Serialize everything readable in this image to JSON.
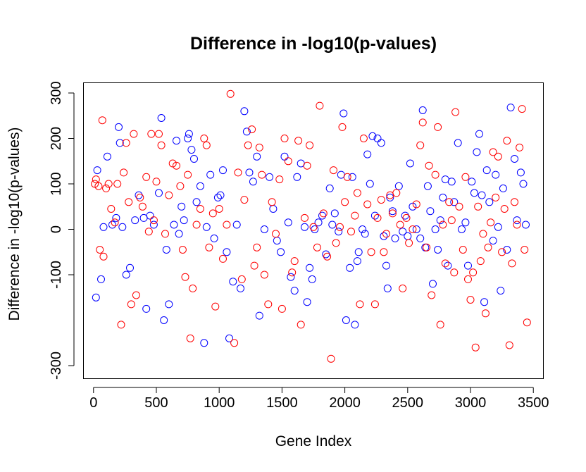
{
  "chart_data": {
    "type": "scatter",
    "title": "Difference in -log10(p-values)",
    "xlabel": "Gene Index",
    "ylabel": "Difference in -log10(p-values)",
    "xlim": [
      -80,
      3580
    ],
    "ylim": [
      -300,
      300
    ],
    "xticks": [
      0,
      500,
      1000,
      1500,
      2000,
      2500,
      3000,
      3500
    ],
    "yticks": [
      -300,
      -100,
      0,
      100,
      200,
      300
    ],
    "grid": false,
    "legend": "none",
    "colors": {
      "series_1": "#0000ff",
      "series_2": "#ff0000"
    },
    "series": [
      {
        "color": "#0000ff",
        "points": [
          [
            20,
            -150
          ],
          [
            30,
            130
          ],
          [
            60,
            -110
          ],
          [
            80,
            5
          ],
          [
            110,
            160
          ],
          [
            150,
            10
          ],
          [
            180,
            25
          ],
          [
            200,
            225
          ],
          [
            210,
            190
          ],
          [
            230,
            5
          ],
          [
            260,
            -100
          ],
          [
            290,
            -85
          ],
          [
            330,
            20
          ],
          [
            360,
            75
          ],
          [
            400,
            25
          ],
          [
            420,
            -175
          ],
          [
            450,
            30
          ],
          [
            480,
            10
          ],
          [
            520,
            80
          ],
          [
            540,
            245
          ],
          [
            560,
            -200
          ],
          [
            580,
            -45
          ],
          [
            600,
            -165
          ],
          [
            640,
            10
          ],
          [
            660,
            195
          ],
          [
            680,
            -10
          ],
          [
            700,
            50
          ],
          [
            720,
            20
          ],
          [
            750,
            200
          ],
          [
            760,
            210
          ],
          [
            780,
            175
          ],
          [
            800,
            155
          ],
          [
            820,
            60
          ],
          [
            850,
            95
          ],
          [
            880,
            -250
          ],
          [
            900,
            5
          ],
          [
            930,
            120
          ],
          [
            960,
            -20
          ],
          [
            990,
            70
          ],
          [
            1010,
            75
          ],
          [
            1030,
            130
          ],
          [
            1060,
            -50
          ],
          [
            1080,
            -240
          ],
          [
            1110,
            -115
          ],
          [
            1140,
            10
          ],
          [
            1170,
            -130
          ],
          [
            1200,
            260
          ],
          [
            1220,
            215
          ],
          [
            1240,
            125
          ],
          [
            1270,
            105
          ],
          [
            1300,
            160
          ],
          [
            1320,
            -190
          ],
          [
            1360,
            0
          ],
          [
            1400,
            115
          ],
          [
            1430,
            45
          ],
          [
            1460,
            -25
          ],
          [
            1490,
            -50
          ],
          [
            1520,
            160
          ],
          [
            1550,
            15
          ],
          [
            1570,
            -105
          ],
          [
            1600,
            -135
          ],
          [
            1620,
            115
          ],
          [
            1650,
            145
          ],
          [
            1680,
            5
          ],
          [
            1700,
            -160
          ],
          [
            1720,
            -85
          ],
          [
            1740,
            -110
          ],
          [
            1760,
            0
          ],
          [
            1790,
            15
          ],
          [
            1820,
            30
          ],
          [
            1850,
            -55
          ],
          [
            1880,
            90
          ],
          [
            1900,
            10
          ],
          [
            1920,
            35
          ],
          [
            1950,
            -5
          ],
          [
            1970,
            120
          ],
          [
            1990,
            255
          ],
          [
            2010,
            -200
          ],
          [
            2040,
            -85
          ],
          [
            2060,
            115
          ],
          [
            2080,
            -210
          ],
          [
            2100,
            -70
          ],
          [
            2110,
            -50
          ],
          [
            2140,
            0
          ],
          [
            2160,
            -10
          ],
          [
            2180,
            165
          ],
          [
            2200,
            100
          ],
          [
            2220,
            205
          ],
          [
            2240,
            30
          ],
          [
            2260,
            200
          ],
          [
            2290,
            190
          ],
          [
            2310,
            -15
          ],
          [
            2330,
            -80
          ],
          [
            2340,
            -130
          ],
          [
            2360,
            70
          ],
          [
            2380,
            40
          ],
          [
            2400,
            -20
          ],
          [
            2430,
            95
          ],
          [
            2460,
            -5
          ],
          [
            2480,
            30
          ],
          [
            2500,
            -15
          ],
          [
            2520,
            145
          ],
          [
            2540,
            50
          ],
          [
            2570,
            0
          ],
          [
            2600,
            -20
          ],
          [
            2620,
            262
          ],
          [
            2640,
            -40
          ],
          [
            2660,
            95
          ],
          [
            2680,
            40
          ],
          [
            2700,
            -120
          ],
          [
            2720,
            0
          ],
          [
            2740,
            -45
          ],
          [
            2760,
            20
          ],
          [
            2780,
            70
          ],
          [
            2800,
            110
          ],
          [
            2820,
            -80
          ],
          [
            2850,
            105
          ],
          [
            2870,
            60
          ],
          [
            2900,
            190
          ],
          [
            2930,
            0
          ],
          [
            2960,
            15
          ],
          [
            2980,
            -80
          ],
          [
            3010,
            105
          ],
          [
            3030,
            80
          ],
          [
            3050,
            170
          ],
          [
            3070,
            210
          ],
          [
            3090,
            75
          ],
          [
            3110,
            -160
          ],
          [
            3130,
            130
          ],
          [
            3150,
            60
          ],
          [
            3180,
            -25
          ],
          [
            3200,
            120
          ],
          [
            3220,
            5
          ],
          [
            3240,
            -135
          ],
          [
            3260,
            90
          ],
          [
            3290,
            -45
          ],
          [
            3320,
            268
          ],
          [
            3350,
            155
          ],
          [
            3370,
            20
          ],
          [
            3400,
            125
          ],
          [
            3420,
            100
          ],
          [
            3440,
            10
          ]
        ]
      },
      {
        "color": "#ff0000",
        "points": [
          [
            10,
            100
          ],
          [
            20,
            110
          ],
          [
            40,
            95
          ],
          [
            50,
            -45
          ],
          [
            70,
            240
          ],
          [
            80,
            -60
          ],
          [
            100,
            90
          ],
          [
            120,
            100
          ],
          [
            140,
            45
          ],
          [
            170,
            15
          ],
          [
            190,
            100
          ],
          [
            220,
            -210
          ],
          [
            240,
            125
          ],
          [
            260,
            190
          ],
          [
            280,
            60
          ],
          [
            300,
            -165
          ],
          [
            320,
            210
          ],
          [
            340,
            -145
          ],
          [
            370,
            70
          ],
          [
            390,
            50
          ],
          [
            420,
            115
          ],
          [
            440,
            -5
          ],
          [
            460,
            210
          ],
          [
            480,
            20
          ],
          [
            500,
            105
          ],
          [
            520,
            210
          ],
          [
            540,
            185
          ],
          [
            570,
            -10
          ],
          [
            600,
            75
          ],
          [
            630,
            145
          ],
          [
            660,
            140
          ],
          [
            690,
            95
          ],
          [
            710,
            -45
          ],
          [
            730,
            -105
          ],
          [
            750,
            120
          ],
          [
            770,
            -240
          ],
          [
            790,
            -130
          ],
          [
            820,
            10
          ],
          [
            850,
            45
          ],
          [
            880,
            200
          ],
          [
            900,
            185
          ],
          [
            920,
            -40
          ],
          [
            950,
            35
          ],
          [
            970,
            -170
          ],
          [
            1000,
            45
          ],
          [
            1030,
            -65
          ],
          [
            1060,
            10
          ],
          [
            1090,
            298
          ],
          [
            1120,
            -250
          ],
          [
            1150,
            125
          ],
          [
            1180,
            -110
          ],
          [
            1200,
            65
          ],
          [
            1230,
            185
          ],
          [
            1260,
            220
          ],
          [
            1280,
            -80
          ],
          [
            1300,
            -40
          ],
          [
            1320,
            180
          ],
          [
            1340,
            120
          ],
          [
            1360,
            -100
          ],
          [
            1390,
            -165
          ],
          [
            1420,
            60
          ],
          [
            1450,
            -10
          ],
          [
            1480,
            110
          ],
          [
            1500,
            -175
          ],
          [
            1520,
            200
          ],
          [
            1550,
            150
          ],
          [
            1580,
            -95
          ],
          [
            1600,
            -70
          ],
          [
            1630,
            195
          ],
          [
            1650,
            -210
          ],
          [
            1680,
            25
          ],
          [
            1700,
            140
          ],
          [
            1720,
            185
          ],
          [
            1750,
            5
          ],
          [
            1780,
            -40
          ],
          [
            1800,
            272
          ],
          [
            1830,
            35
          ],
          [
            1860,
            -60
          ],
          [
            1890,
            -285
          ],
          [
            1910,
            130
          ],
          [
            1930,
            -30
          ],
          [
            1960,
            5
          ],
          [
            1980,
            225
          ],
          [
            2000,
            60
          ],
          [
            2020,
            115
          ],
          [
            2050,
            -5
          ],
          [
            2080,
            30
          ],
          [
            2100,
            80
          ],
          [
            2120,
            -165
          ],
          [
            2150,
            200
          ],
          [
            2180,
            55
          ],
          [
            2210,
            -50
          ],
          [
            2240,
            -165
          ],
          [
            2260,
            25
          ],
          [
            2290,
            65
          ],
          [
            2310,
            -50
          ],
          [
            2330,
            -10
          ],
          [
            2360,
            75
          ],
          [
            2380,
            35
          ],
          [
            2410,
            80
          ],
          [
            2440,
            10
          ],
          [
            2460,
            -130
          ],
          [
            2490,
            25
          ],
          [
            2510,
            -30
          ],
          [
            2540,
            0
          ],
          [
            2570,
            55
          ],
          [
            2600,
            185
          ],
          [
            2620,
            235
          ],
          [
            2650,
            -40
          ],
          [
            2670,
            140
          ],
          [
            2690,
            -145
          ],
          [
            2720,
            120
          ],
          [
            2740,
            225
          ],
          [
            2760,
            -210
          ],
          [
            2780,
            10
          ],
          [
            2800,
            -75
          ],
          [
            2830,
            60
          ],
          [
            2850,
            20
          ],
          [
            2870,
            -95
          ],
          [
            2880,
            258
          ],
          [
            2910,
            50
          ],
          [
            2940,
            -45
          ],
          [
            2960,
            115
          ],
          [
            2980,
            -110
          ],
          [
            3000,
            -155
          ],
          [
            3020,
            -95
          ],
          [
            3040,
            -260
          ],
          [
            3060,
            50
          ],
          [
            3080,
            -70
          ],
          [
            3100,
            -10
          ],
          [
            3120,
            -185
          ],
          [
            3140,
            -40
          ],
          [
            3160,
            15
          ],
          [
            3180,
            170
          ],
          [
            3200,
            70
          ],
          [
            3220,
            160
          ],
          [
            3250,
            -50
          ],
          [
            3270,
            45
          ],
          [
            3290,
            195
          ],
          [
            3310,
            -255
          ],
          [
            3330,
            -75
          ],
          [
            3350,
            60
          ],
          [
            3370,
            10
          ],
          [
            3390,
            180
          ],
          [
            3410,
            265
          ],
          [
            3430,
            -45
          ],
          [
            3450,
            -205
          ]
        ]
      }
    ]
  }
}
